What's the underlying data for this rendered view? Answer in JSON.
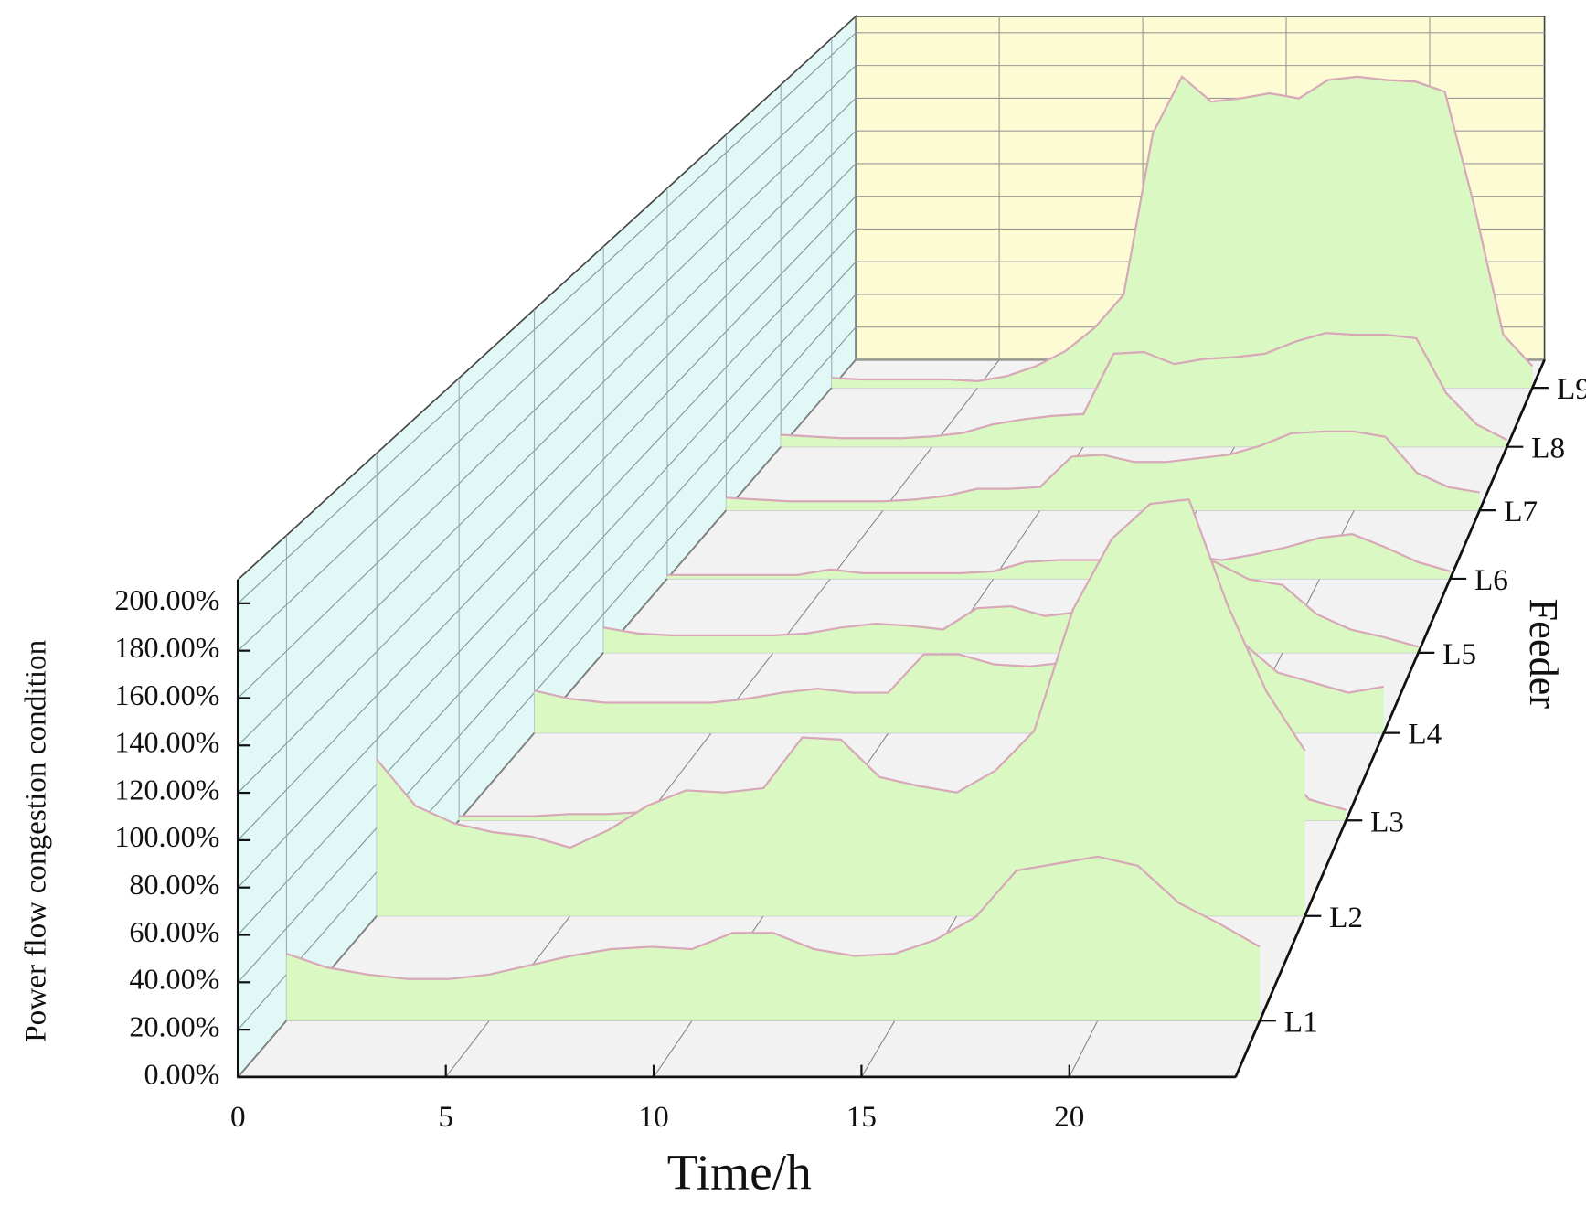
{
  "chart_data": {
    "type": "waterfall3d",
    "xlabel": "Time/h",
    "ylabel": "Power flow congestion condition",
    "zlabel": "Feeder",
    "x": [
      0,
      1,
      2,
      3,
      4,
      5,
      6,
      7,
      8,
      9,
      10,
      11,
      12,
      13,
      14,
      15,
      16,
      17,
      18,
      19,
      20,
      21,
      22,
      23,
      24
    ],
    "xlim": [
      0,
      24
    ],
    "xticks": [
      0,
      5,
      10,
      15,
      20
    ],
    "ylim": [
      0,
      210
    ],
    "yticks": [
      {
        "value": 0,
        "label": "0.00%"
      },
      {
        "value": 20,
        "label": "20.00%"
      },
      {
        "value": 40,
        "label": "40.00%"
      },
      {
        "value": 60,
        "label": "60.00%"
      },
      {
        "value": 80,
        "label": "80.00%"
      },
      {
        "value": 100,
        "label": "100.00%"
      },
      {
        "value": 120,
        "label": "120.00%"
      },
      {
        "value": 140,
        "label": "140.00%"
      },
      {
        "value": 160,
        "label": "160.00%"
      },
      {
        "value": 180,
        "label": "180.00%"
      },
      {
        "value": 200,
        "label": "200.00%"
      }
    ],
    "fill_color": "#d9f8c2",
    "line_color": "#d8a8b8",
    "grid": true,
    "series": [
      {
        "name": "L1",
        "values": [
          29,
          23,
          20,
          18,
          18,
          20,
          24,
          28,
          31,
          32,
          31,
          38,
          38,
          31,
          28,
          29,
          35,
          45,
          65,
          68,
          71,
          67,
          51,
          42,
          32
        ]
      },
      {
        "name": "L2",
        "values": [
          71,
          50,
          42,
          38,
          36,
          31,
          39,
          50,
          57,
          56,
          58,
          81,
          80,
          63,
          59,
          56,
          66,
          84,
          139,
          171,
          187,
          189,
          141,
          102,
          75
        ]
      },
      {
        "name": "L3",
        "values": [
          2,
          2,
          2,
          3,
          3,
          4,
          5,
          8,
          10,
          12,
          14,
          15,
          14,
          12,
          10,
          10,
          12,
          20,
          40,
          60,
          70,
          60,
          30,
          10,
          5
        ]
      },
      {
        "name": "L4",
        "values": [
          21,
          17,
          15,
          15,
          15,
          15,
          17,
          20,
          22,
          20,
          20,
          39,
          39,
          34,
          33,
          35,
          50,
          60,
          65,
          60,
          45,
          30,
          25,
          20,
          23
        ]
      },
      {
        "name": "L5",
        "values": [
          13,
          10,
          9,
          9,
          9,
          9,
          10,
          13,
          15,
          14,
          12,
          23,
          24,
          19,
          21,
          25,
          30,
          44,
          47,
          38,
          35,
          20,
          12,
          8,
          3
        ]
      },
      {
        "name": "L6",
        "values": [
          2,
          2,
          2,
          2,
          2,
          5,
          3,
          3,
          3,
          3,
          4,
          9,
          10,
          10,
          10,
          10,
          12,
          10,
          13,
          17,
          22,
          24,
          17,
          9,
          4
        ]
      },
      {
        "name": "L7",
        "values": [
          7,
          6,
          5,
          5,
          5,
          5,
          6,
          8,
          12,
          12,
          13,
          30,
          31,
          27,
          27,
          29,
          31,
          36,
          43,
          44,
          44,
          41,
          21,
          13,
          10
        ]
      },
      {
        "name": "L8",
        "values": [
          7,
          6,
          5,
          5,
          5,
          6,
          8,
          13,
          16,
          18,
          19,
          54,
          55,
          48,
          51,
          52,
          54,
          61,
          66,
          65,
          65,
          63,
          31,
          13,
          4
        ]
      },
      {
        "name": "L9",
        "values": [
          6,
          5,
          5,
          5,
          5,
          4,
          7,
          13,
          22,
          36,
          56,
          153,
          187,
          172,
          174,
          177,
          174,
          185,
          187,
          185,
          184,
          178,
          110,
          32,
          13
        ]
      }
    ]
  }
}
